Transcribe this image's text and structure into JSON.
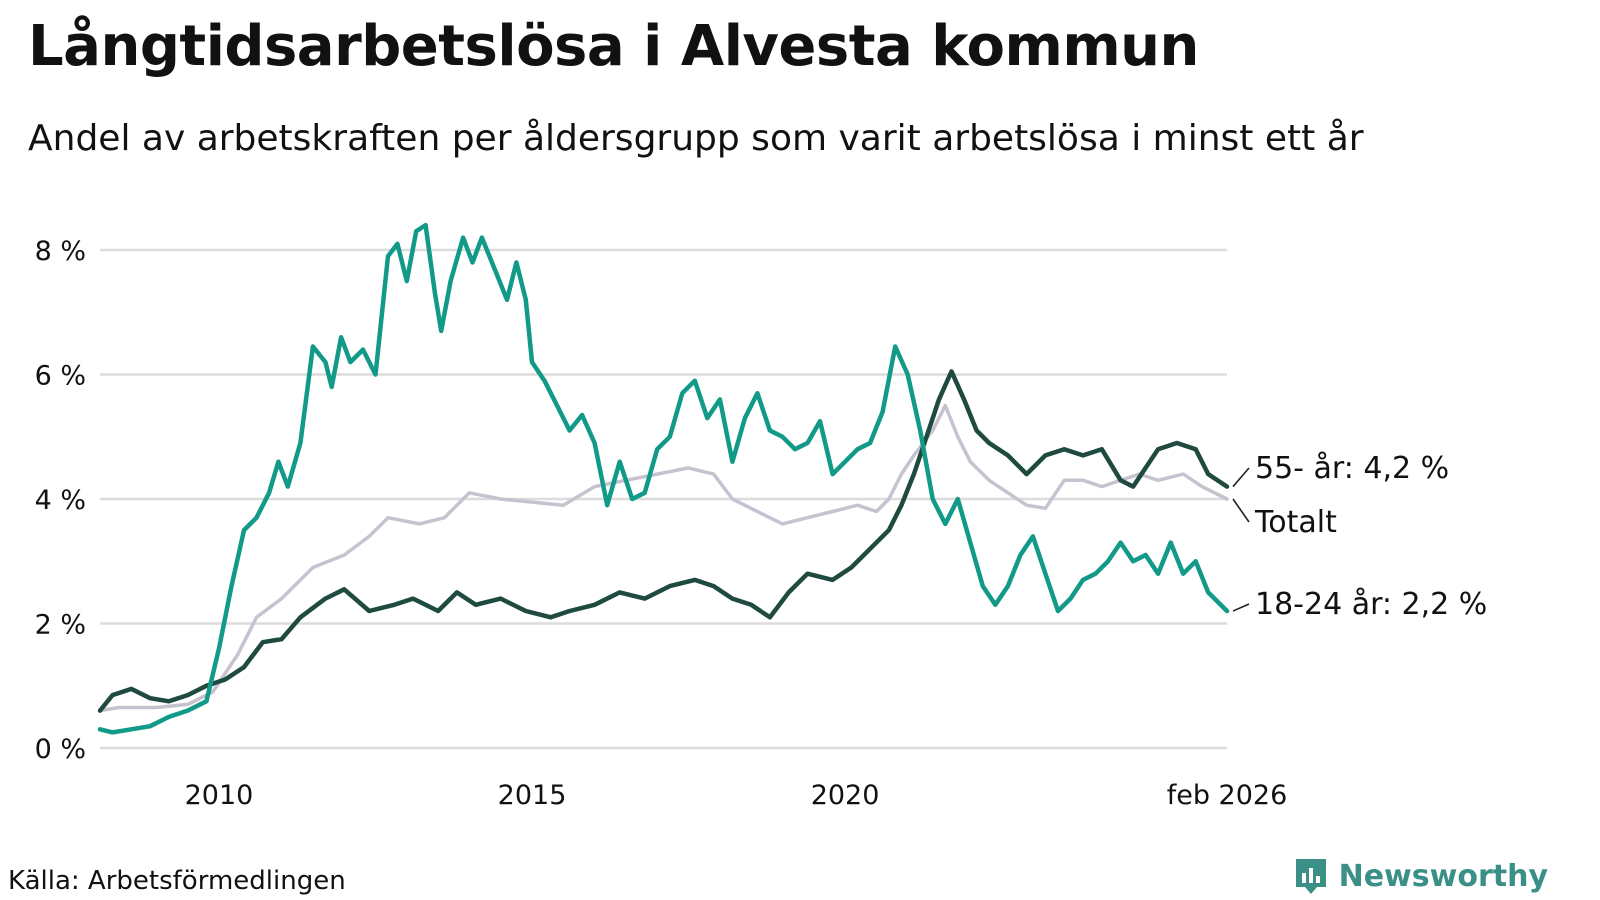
{
  "title": "Långtidsarbetslösa i Alvesta kommun",
  "subtitle": "Andel av arbetskraften per åldersgrupp som varit arbetslösa i minst ett år",
  "source": "Källa: Arbetsförmedlingen",
  "brand": "Newsworthy",
  "colors": {
    "youth": "#129a88",
    "senior": "#1f4a40",
    "total": "#c7c2d0",
    "grid": "#dcdcdc",
    "brand": "#3a8f86"
  },
  "chart_data": {
    "type": "line",
    "title": "Långtidsarbetslösa i Alvesta kommun",
    "xlabel": "",
    "ylabel": "",
    "ylim": [
      0,
      8
    ],
    "xlim": [
      2008.1,
      2026.1
    ],
    "y_ticks": [
      0,
      2,
      4,
      6,
      8
    ],
    "y_tick_labels": [
      "0 %",
      "2 %",
      "4 %",
      "6 %",
      "8 %"
    ],
    "x_ticks": [
      2010,
      2015,
      2020,
      2026.1
    ],
    "x_tick_labels": [
      "2010",
      "2015",
      "2020",
      "feb 2026"
    ],
    "end_labels": {
      "senior": "55- år: 4,2 %",
      "total": "Totalt",
      "youth": "18-24 år: 2,2 %"
    },
    "series": [
      {
        "key": "total",
        "name": "Totalt",
        "points": [
          [
            2008.1,
            0.6
          ],
          [
            2008.4,
            0.65
          ],
          [
            2009.0,
            0.65
          ],
          [
            2009.5,
            0.7
          ],
          [
            2009.9,
            0.9
          ],
          [
            2010.3,
            1.5
          ],
          [
            2010.6,
            2.1
          ],
          [
            2011.0,
            2.4
          ],
          [
            2011.5,
            2.9
          ],
          [
            2012.0,
            3.1
          ],
          [
            2012.4,
            3.4
          ],
          [
            2012.7,
            3.7
          ],
          [
            2013.2,
            3.6
          ],
          [
            2013.6,
            3.7
          ],
          [
            2014.0,
            4.1
          ],
          [
            2014.5,
            4.0
          ],
          [
            2015.0,
            3.95
          ],
          [
            2015.5,
            3.9
          ],
          [
            2016.0,
            4.2
          ],
          [
            2016.5,
            4.3
          ],
          [
            2017.0,
            4.4
          ],
          [
            2017.5,
            4.5
          ],
          [
            2017.9,
            4.4
          ],
          [
            2018.2,
            4.0
          ],
          [
            2018.6,
            3.8
          ],
          [
            2019.0,
            3.6
          ],
          [
            2019.4,
            3.7
          ],
          [
            2019.8,
            3.8
          ],
          [
            2020.2,
            3.9
          ],
          [
            2020.5,
            3.8
          ],
          [
            2020.7,
            4.0
          ],
          [
            2020.9,
            4.4
          ],
          [
            2021.1,
            4.7
          ],
          [
            2021.4,
            5.1
          ],
          [
            2021.6,
            5.5
          ],
          [
            2021.8,
            5.0
          ],
          [
            2022.0,
            4.6
          ],
          [
            2022.3,
            4.3
          ],
          [
            2022.6,
            4.1
          ],
          [
            2022.9,
            3.9
          ],
          [
            2023.2,
            3.85
          ],
          [
            2023.5,
            4.3
          ],
          [
            2023.8,
            4.3
          ],
          [
            2024.1,
            4.2
          ],
          [
            2024.4,
            4.3
          ],
          [
            2024.7,
            4.4
          ],
          [
            2025.0,
            4.3
          ],
          [
            2025.4,
            4.4
          ],
          [
            2025.7,
            4.2
          ],
          [
            2026.1,
            4.0
          ]
        ]
      },
      {
        "key": "senior",
        "name": "55- år",
        "points": [
          [
            2008.1,
            0.6
          ],
          [
            2008.3,
            0.85
          ],
          [
            2008.6,
            0.95
          ],
          [
            2008.9,
            0.8
          ],
          [
            2009.2,
            0.75
          ],
          [
            2009.5,
            0.85
          ],
          [
            2009.8,
            1.0
          ],
          [
            2010.1,
            1.1
          ],
          [
            2010.4,
            1.3
          ],
          [
            2010.7,
            1.7
          ],
          [
            2011.0,
            1.75
          ],
          [
            2011.3,
            2.1
          ],
          [
            2011.7,
            2.4
          ],
          [
            2012.0,
            2.55
          ],
          [
            2012.4,
            2.2
          ],
          [
            2012.8,
            2.3
          ],
          [
            2013.1,
            2.4
          ],
          [
            2013.5,
            2.2
          ],
          [
            2013.8,
            2.5
          ],
          [
            2014.1,
            2.3
          ],
          [
            2014.5,
            2.4
          ],
          [
            2014.9,
            2.2
          ],
          [
            2015.3,
            2.1
          ],
          [
            2015.6,
            2.2
          ],
          [
            2016.0,
            2.3
          ],
          [
            2016.4,
            2.5
          ],
          [
            2016.8,
            2.4
          ],
          [
            2017.2,
            2.6
          ],
          [
            2017.6,
            2.7
          ],
          [
            2017.9,
            2.6
          ],
          [
            2018.2,
            2.4
          ],
          [
            2018.5,
            2.3
          ],
          [
            2018.8,
            2.1
          ],
          [
            2019.1,
            2.5
          ],
          [
            2019.4,
            2.8
          ],
          [
            2019.8,
            2.7
          ],
          [
            2020.1,
            2.9
          ],
          [
            2020.4,
            3.2
          ],
          [
            2020.7,
            3.5
          ],
          [
            2020.9,
            3.9
          ],
          [
            2021.1,
            4.4
          ],
          [
            2021.3,
            5.0
          ],
          [
            2021.5,
            5.6
          ],
          [
            2021.7,
            6.05
          ],
          [
            2021.9,
            5.6
          ],
          [
            2022.1,
            5.1
          ],
          [
            2022.3,
            4.9
          ],
          [
            2022.6,
            4.7
          ],
          [
            2022.9,
            4.4
          ],
          [
            2023.2,
            4.7
          ],
          [
            2023.5,
            4.8
          ],
          [
            2023.8,
            4.7
          ],
          [
            2024.1,
            4.8
          ],
          [
            2024.4,
            4.3
          ],
          [
            2024.6,
            4.2
          ],
          [
            2024.8,
            4.5
          ],
          [
            2025.0,
            4.8
          ],
          [
            2025.3,
            4.9
          ],
          [
            2025.6,
            4.8
          ],
          [
            2025.8,
            4.4
          ],
          [
            2026.1,
            4.2
          ]
        ]
      },
      {
        "key": "youth",
        "name": "18-24 år",
        "points": [
          [
            2008.1,
            0.3
          ],
          [
            2008.3,
            0.25
          ],
          [
            2008.6,
            0.3
          ],
          [
            2008.9,
            0.35
          ],
          [
            2009.2,
            0.5
          ],
          [
            2009.5,
            0.6
          ],
          [
            2009.8,
            0.75
          ],
          [
            2010.0,
            1.6
          ],
          [
            2010.2,
            2.6
          ],
          [
            2010.4,
            3.5
          ],
          [
            2010.6,
            3.7
          ],
          [
            2010.8,
            4.1
          ],
          [
            2010.95,
            4.6
          ],
          [
            2011.1,
            4.2
          ],
          [
            2011.3,
            4.9
          ],
          [
            2011.5,
            6.45
          ],
          [
            2011.7,
            6.2
          ],
          [
            2011.8,
            5.8
          ],
          [
            2011.95,
            6.6
          ],
          [
            2012.1,
            6.2
          ],
          [
            2012.3,
            6.4
          ],
          [
            2012.5,
            6.0
          ],
          [
            2012.7,
            7.9
          ],
          [
            2012.85,
            8.1
          ],
          [
            2013.0,
            7.5
          ],
          [
            2013.15,
            8.3
          ],
          [
            2013.3,
            8.4
          ],
          [
            2013.45,
            7.3
          ],
          [
            2013.55,
            6.7
          ],
          [
            2013.7,
            7.5
          ],
          [
            2013.9,
            8.2
          ],
          [
            2014.05,
            7.8
          ],
          [
            2014.2,
            8.2
          ],
          [
            2014.4,
            7.7
          ],
          [
            2014.6,
            7.2
          ],
          [
            2014.75,
            7.8
          ],
          [
            2014.9,
            7.2
          ],
          [
            2015.0,
            6.2
          ],
          [
            2015.2,
            5.9
          ],
          [
            2015.4,
            5.5
          ],
          [
            2015.6,
            5.1
          ],
          [
            2015.8,
            5.35
          ],
          [
            2016.0,
            4.9
          ],
          [
            2016.2,
            3.9
          ],
          [
            2016.4,
            4.6
          ],
          [
            2016.6,
            4.0
          ],
          [
            2016.8,
            4.1
          ],
          [
            2017.0,
            4.8
          ],
          [
            2017.2,
            5.0
          ],
          [
            2017.4,
            5.7
          ],
          [
            2017.6,
            5.9
          ],
          [
            2017.8,
            5.3
          ],
          [
            2018.0,
            5.6
          ],
          [
            2018.2,
            4.6
          ],
          [
            2018.4,
            5.3
          ],
          [
            2018.6,
            5.7
          ],
          [
            2018.8,
            5.1
          ],
          [
            2019.0,
            5.0
          ],
          [
            2019.2,
            4.8
          ],
          [
            2019.4,
            4.9
          ],
          [
            2019.6,
            5.25
          ],
          [
            2019.8,
            4.4
          ],
          [
            2020.0,
            4.6
          ],
          [
            2020.2,
            4.8
          ],
          [
            2020.4,
            4.9
          ],
          [
            2020.6,
            5.4
          ],
          [
            2020.8,
            6.45
          ],
          [
            2021.0,
            6.0
          ],
          [
            2021.2,
            5.1
          ],
          [
            2021.4,
            4.0
          ],
          [
            2021.6,
            3.6
          ],
          [
            2021.8,
            4.0
          ],
          [
            2022.0,
            3.3
          ],
          [
            2022.2,
            2.6
          ],
          [
            2022.4,
            2.3
          ],
          [
            2022.6,
            2.6
          ],
          [
            2022.8,
            3.1
          ],
          [
            2023.0,
            3.4
          ],
          [
            2023.2,
            2.8
          ],
          [
            2023.4,
            2.2
          ],
          [
            2023.6,
            2.4
          ],
          [
            2023.8,
            2.7
          ],
          [
            2024.0,
            2.8
          ],
          [
            2024.2,
            3.0
          ],
          [
            2024.4,
            3.3
          ],
          [
            2024.6,
            3.0
          ],
          [
            2024.8,
            3.1
          ],
          [
            2025.0,
            2.8
          ],
          [
            2025.2,
            3.3
          ],
          [
            2025.4,
            2.8
          ],
          [
            2025.6,
            3.0
          ],
          [
            2025.8,
            2.5
          ],
          [
            2026.1,
            2.2
          ]
        ]
      }
    ]
  }
}
